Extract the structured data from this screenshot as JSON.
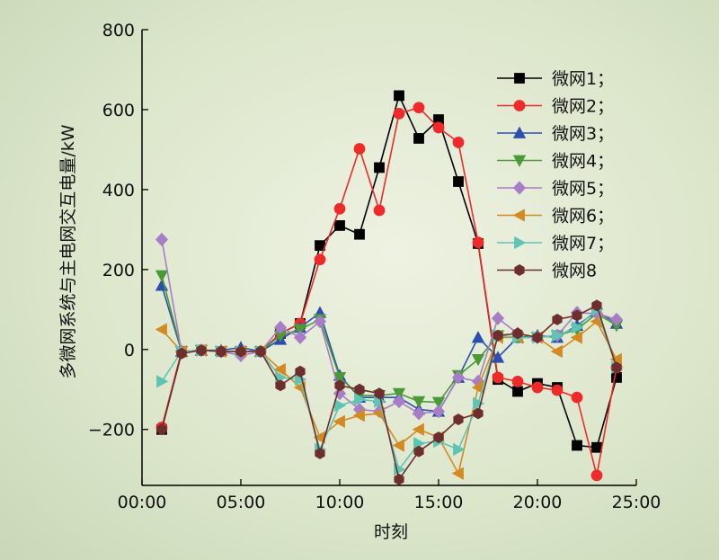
{
  "chart_data": {
    "type": "line",
    "title": "",
    "xlabel": "时刻",
    "ylabel": "多微网系统与主电网交互电量/kW",
    "xlim": [
      0,
      25
    ],
    "ylim": [
      -340,
      800
    ],
    "x_ticks": [
      0,
      5,
      10,
      15,
      20,
      25
    ],
    "x_tick_labels": [
      "00:00",
      "05:00",
      "10:00",
      "15:00",
      "20:00",
      "25:00"
    ],
    "y_ticks": [
      -200,
      0,
      200,
      400,
      600,
      800
    ],
    "y_tick_labels": [
      "−200",
      "0",
      "200",
      "400",
      "600",
      "800"
    ],
    "grid": false,
    "legend_position": "top-right",
    "x": [
      1,
      2,
      3,
      4,
      5,
      6,
      7,
      8,
      9,
      10,
      11,
      12,
      13,
      14,
      15,
      16,
      17,
      18,
      19,
      20,
      21,
      22,
      23,
      24
    ],
    "series": [
      {
        "name": "微网1；",
        "color": "#000000",
        "marker": "square",
        "values": [
          -200,
          -5,
          -2,
          -5,
          -5,
          -5,
          40,
          65,
          260,
          310,
          288,
          455,
          635,
          528,
          575,
          420,
          265,
          -75,
          -105,
          -85,
          -95,
          -240,
          -245,
          -70
        ]
      },
      {
        "name": "微网2；",
        "color": "#ee2a2a",
        "marker": "circle",
        "values": [
          -195,
          -5,
          -2,
          -5,
          -5,
          -5,
          40,
          65,
          225,
          352,
          502,
          348,
          590,
          605,
          555,
          518,
          268,
          -70,
          -80,
          -95,
          -102,
          -120,
          -315,
          -45
        ]
      },
      {
        "name": "微网3；",
        "color": "#2a4fb0",
        "marker": "triangle-up",
        "values": [
          160,
          -5,
          -2,
          -2,
          5,
          -5,
          25,
          55,
          92,
          -65,
          -120,
          -120,
          -120,
          -150,
          -155,
          -70,
          30,
          -20,
          30,
          35,
          30,
          60,
          95,
          65
        ]
      },
      {
        "name": "微网4；",
        "color": "#4a9a3a",
        "marker": "triangle-down",
        "values": [
          185,
          -5,
          -2,
          -5,
          -5,
          -5,
          35,
          50,
          75,
          -70,
          -115,
          -115,
          -110,
          -130,
          -132,
          -65,
          -25,
          35,
          30,
          30,
          35,
          50,
          90,
          60
        ]
      },
      {
        "name": "微网5；",
        "color": "#a77dc7",
        "marker": "diamond",
        "values": [
          275,
          -5,
          -2,
          -5,
          -15,
          -5,
          55,
          30,
          70,
          -110,
          -150,
          -155,
          -130,
          -160,
          -155,
          -70,
          -80,
          78,
          40,
          30,
          35,
          92,
          90,
          75
        ]
      },
      {
        "name": "微网6；",
        "color": "#d48a22",
        "marker": "triangle-left",
        "values": [
          50,
          -5,
          -2,
          -5,
          -5,
          -5,
          -50,
          -95,
          -220,
          -180,
          -165,
          -160,
          -240,
          -200,
          -220,
          -310,
          -95,
          30,
          30,
          30,
          -5,
          30,
          70,
          -25
        ]
      },
      {
        "name": "微网7；",
        "color": "#5fc4b4",
        "marker": "triangle-right",
        "values": [
          -80,
          -5,
          -2,
          -5,
          -5,
          -5,
          -70,
          -75,
          -250,
          -140,
          -125,
          -130,
          -300,
          -235,
          -230,
          -250,
          -135,
          35,
          30,
          30,
          35,
          55,
          100,
          -45
        ]
      },
      {
        "name": "微网8",
        "color": "#6e2e2e",
        "marker": "hexagon",
        "values": [
          -200,
          -10,
          -2,
          -5,
          -5,
          -5,
          -90,
          -55,
          -260,
          -90,
          -100,
          -110,
          -325,
          -255,
          -220,
          -175,
          -160,
          35,
          40,
          30,
          75,
          85,
          110,
          -45
        ]
      }
    ]
  }
}
